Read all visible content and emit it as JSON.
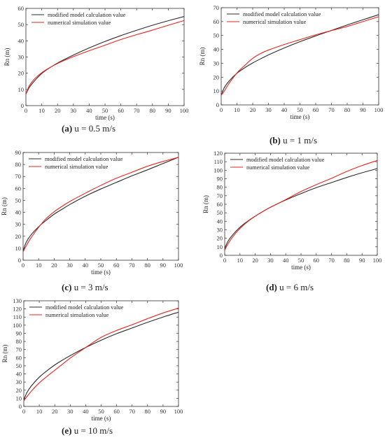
{
  "chart_data": [
    {
      "type": "line",
      "caption_letter": "(a)",
      "caption_text": " u = 0.5 m/s",
      "xlabel": "time (s)",
      "ylabel": "Rn (m)",
      "xlim": [
        0,
        100
      ],
      "ylim": [
        0,
        60
      ],
      "xticks": [
        0,
        10,
        20,
        30,
        40,
        50,
        60,
        70,
        80,
        90,
        100
      ],
      "yticks": [
        0,
        10,
        20,
        30,
        40,
        50,
        60
      ],
      "legend_position": "top-left",
      "series": [
        {
          "name": "modified model calculation value",
          "color": "#2b2b2b",
          "x": [
            0,
            2,
            5,
            10,
            15,
            20,
            25,
            30,
            40,
            50,
            60,
            70,
            80,
            90,
            100
          ],
          "y": [
            7,
            11,
            14.8,
            19.8,
            23.3,
            26.3,
            28.8,
            31.2,
            35.6,
            39.6,
            43.2,
            46.5,
            49.6,
            52.4,
            55
          ]
        },
        {
          "name": "numerical simulation value",
          "color": "#e8251f",
          "x": [
            0,
            2,
            5,
            10,
            15,
            20,
            25,
            30,
            40,
            50,
            60,
            70,
            80,
            90,
            100
          ],
          "y": [
            7,
            12,
            16,
            20.3,
            23.4,
            26,
            28.2,
            30.2,
            33.9,
            37.3,
            40.8,
            43.8,
            46.6,
            49.6,
            52.5
          ]
        }
      ]
    },
    {
      "type": "line",
      "caption_letter": "(b)",
      "caption_text": " u = 1 m/s",
      "xlabel": "time (s)",
      "ylabel": "Rn (m)",
      "xlim": [
        0,
        100
      ],
      "ylim": [
        0,
        70
      ],
      "xticks": [
        0,
        10,
        20,
        30,
        40,
        50,
        60,
        70,
        80,
        90,
        100
      ],
      "yticks": [
        0,
        10,
        20,
        30,
        40,
        50,
        60,
        70
      ],
      "legend_position": "top-left",
      "series": [
        {
          "name": "modified model calculation value",
          "color": "#2b2b2b",
          "x": [
            0,
            2,
            5,
            10,
            15,
            20,
            25,
            30,
            40,
            50,
            60,
            70,
            80,
            90,
            100
          ],
          "y": [
            7,
            12.5,
            17.2,
            22.8,
            26.8,
            30.2,
            33.2,
            36,
            41,
            45.5,
            49.7,
            53.6,
            57.6,
            61.3,
            65
          ]
        },
        {
          "name": "numerical simulation value",
          "color": "#e8251f",
          "x": [
            0,
            2,
            5,
            10,
            15,
            20,
            25,
            30,
            40,
            50,
            60,
            70,
            80,
            90,
            100
          ],
          "y": [
            7,
            10,
            15.5,
            23,
            28.5,
            33.5,
            37,
            39.5,
            43.5,
            47,
            50.5,
            53.5,
            56.5,
            60,
            63.5
          ]
        }
      ]
    },
    {
      "type": "line",
      "caption_letter": "(c)",
      "caption_text": " u = 3 m/s",
      "xlabel": "time (s)",
      "ylabel": "Rn (m)",
      "xlim": [
        0,
        100
      ],
      "ylim": [
        0,
        90
      ],
      "xticks": [
        0,
        10,
        20,
        30,
        40,
        50,
        60,
        70,
        80,
        90,
        100
      ],
      "yticks": [
        0,
        10,
        20,
        30,
        40,
        50,
        60,
        70,
        80,
        90
      ],
      "legend_position": "top-left",
      "series": [
        {
          "name": "modified model calculation value",
          "color": "#2b2b2b",
          "x": [
            0,
            2,
            5,
            10,
            15,
            20,
            25,
            30,
            40,
            50,
            60,
            70,
            80,
            90,
            100
          ],
          "y": [
            8,
            15,
            21,
            28,
            33.5,
            38.5,
            42.5,
            46.5,
            53.5,
            59.5,
            65,
            70.5,
            75.5,
            80.8,
            86
          ]
        },
        {
          "name": "numerical simulation value",
          "color": "#e8251f",
          "x": [
            0,
            2,
            5,
            10,
            15,
            20,
            25,
            30,
            40,
            50,
            60,
            70,
            80,
            90,
            100
          ],
          "y": [
            7,
            12,
            18.5,
            27.5,
            35,
            40.5,
            45,
            49,
            56,
            62.5,
            68.5,
            73.5,
            78.5,
            82.5,
            86
          ]
        }
      ]
    },
    {
      "type": "line",
      "caption_letter": "(d)",
      "caption_text": " u = 6 m/s",
      "xlabel": "time (s)",
      "ylabel": "Rn (m)",
      "xlim": [
        0,
        100
      ],
      "ylim": [
        0,
        120
      ],
      "xticks": [
        0,
        10,
        20,
        30,
        40,
        50,
        60,
        70,
        80,
        90,
        100
      ],
      "yticks": [
        0,
        10,
        20,
        30,
        40,
        50,
        60,
        70,
        80,
        90,
        100,
        110,
        120
      ],
      "legend_position": "top-left",
      "series": [
        {
          "name": "modified model calculation value",
          "color": "#2b2b2b",
          "x": [
            0,
            2,
            5,
            10,
            15,
            20,
            25,
            30,
            40,
            50,
            60,
            70,
            80,
            90,
            100
          ],
          "y": [
            8,
            16,
            23.5,
            33,
            40,
            46,
            51.5,
            56.5,
            65,
            72.5,
            79.5,
            85.5,
            91.5,
            97,
            102
          ]
        },
        {
          "name": "numerical simulation value",
          "color": "#e8251f",
          "x": [
            0,
            2,
            5,
            10,
            15,
            20,
            25,
            30,
            40,
            50,
            60,
            70,
            80,
            90,
            100
          ],
          "y": [
            6,
            13,
            21,
            31.5,
            39.5,
            46,
            51.5,
            56.5,
            65.5,
            75,
            83,
            90.5,
            98.5,
            105.5,
            111.5
          ]
        }
      ]
    },
    {
      "type": "line",
      "caption_letter": "(e)",
      "caption_text": " u = 10 m/s",
      "xlabel": "time (s)",
      "ylabel": "Rn (m)",
      "xlim": [
        0,
        100
      ],
      "ylim": [
        0,
        130
      ],
      "xticks": [
        0,
        10,
        20,
        30,
        40,
        50,
        60,
        70,
        80,
        90,
        100
      ],
      "yticks": [
        0,
        10,
        20,
        30,
        40,
        50,
        60,
        70,
        80,
        90,
        100,
        110,
        120,
        130
      ],
      "legend_position": "top-left",
      "series": [
        {
          "name": "modified model calculation value",
          "color": "#2b2b2b",
          "x": [
            0,
            2,
            5,
            10,
            15,
            20,
            25,
            30,
            40,
            50,
            60,
            70,
            80,
            90,
            100
          ],
          "y": [
            8,
            17,
            25.5,
            36,
            44,
            51,
            57,
            62.5,
            72.5,
            81.5,
            89.5,
            96.5,
            103.5,
            110,
            116
          ]
        },
        {
          "name": "numerical simulation value",
          "color": "#e8251f",
          "x": [
            0,
            2,
            5,
            10,
            15,
            20,
            25,
            30,
            40,
            50,
            60,
            70,
            80,
            90,
            100
          ],
          "y": [
            7,
            12,
            19,
            29,
            37,
            44.5,
            52,
            59.5,
            72.5,
            85,
            93.5,
            100.5,
            108,
            115,
            121
          ]
        }
      ]
    }
  ]
}
